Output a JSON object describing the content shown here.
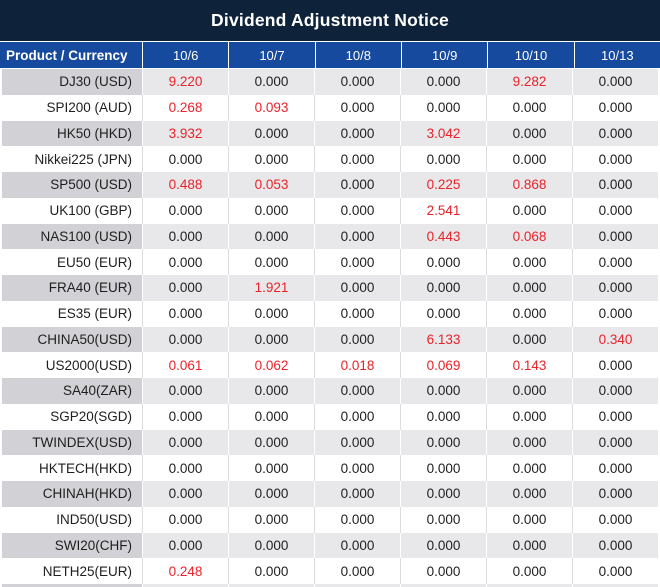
{
  "title": "Dividend Adjustment Notice",
  "colors": {
    "title_bg": "#0e2239",
    "header_bg": "#164a9e",
    "red": "#e8232a"
  },
  "table": {
    "product_header": "Product / Currency",
    "date_columns": [
      "10/6",
      "10/7",
      "10/8",
      "10/9",
      "10/10",
      "10/13"
    ],
    "rows": [
      {
        "product": "DJ30 (USD)",
        "values": [
          "9.220",
          "0.000",
          "0.000",
          "0.000",
          "9.282",
          "0.000"
        ]
      },
      {
        "product": "SPI200 (AUD)",
        "values": [
          "0.268",
          "0.093",
          "0.000",
          "0.000",
          "0.000",
          "0.000"
        ]
      },
      {
        "product": "HK50 (HKD)",
        "values": [
          "3.932",
          "0.000",
          "0.000",
          "3.042",
          "0.000",
          "0.000"
        ]
      },
      {
        "product": "Nikkei225 (JPN)",
        "values": [
          "0.000",
          "0.000",
          "0.000",
          "0.000",
          "0.000",
          "0.000"
        ]
      },
      {
        "product": "SP500 (USD)",
        "values": [
          "0.488",
          "0.053",
          "0.000",
          "0.225",
          "0.868",
          "0.000"
        ]
      },
      {
        "product": "UK100 (GBP)",
        "values": [
          "0.000",
          "0.000",
          "0.000",
          "2.541",
          "0.000",
          "0.000"
        ]
      },
      {
        "product": "NAS100 (USD)",
        "values": [
          "0.000",
          "0.000",
          "0.000",
          "0.443",
          "0.068",
          "0.000"
        ]
      },
      {
        "product": "EU50 (EUR)",
        "values": [
          "0.000",
          "0.000",
          "0.000",
          "0.000",
          "0.000",
          "0.000"
        ]
      },
      {
        "product": "FRA40 (EUR)",
        "values": [
          "0.000",
          "1.921",
          "0.000",
          "0.000",
          "0.000",
          "0.000"
        ]
      },
      {
        "product": "ES35 (EUR)",
        "values": [
          "0.000",
          "0.000",
          "0.000",
          "0.000",
          "0.000",
          "0.000"
        ]
      },
      {
        "product": "CHINA50(USD)",
        "values": [
          "0.000",
          "0.000",
          "0.000",
          "6.133",
          "0.000",
          "0.340"
        ]
      },
      {
        "product": "US2000(USD)",
        "values": [
          "0.061",
          "0.062",
          "0.018",
          "0.069",
          "0.143",
          "0.000"
        ]
      },
      {
        "product": "SA40(ZAR)",
        "values": [
          "0.000",
          "0.000",
          "0.000",
          "0.000",
          "0.000",
          "0.000"
        ]
      },
      {
        "product": "SGP20(SGD)",
        "values": [
          "0.000",
          "0.000",
          "0.000",
          "0.000",
          "0.000",
          "0.000"
        ]
      },
      {
        "product": "TWINDEX(USD)",
        "values": [
          "0.000",
          "0.000",
          "0.000",
          "0.000",
          "0.000",
          "0.000"
        ]
      },
      {
        "product": "HKTECH(HKD)",
        "values": [
          "0.000",
          "0.000",
          "0.000",
          "0.000",
          "0.000",
          "0.000"
        ]
      },
      {
        "product": "CHINAH(HKD)",
        "values": [
          "0.000",
          "0.000",
          "0.000",
          "0.000",
          "0.000",
          "0.000"
        ]
      },
      {
        "product": "IND50(USD)",
        "values": [
          "0.000",
          "0.000",
          "0.000",
          "0.000",
          "0.000",
          "0.000"
        ]
      },
      {
        "product": "SWI20(CHF)",
        "values": [
          "0.000",
          "0.000",
          "0.000",
          "0.000",
          "0.000",
          "0.000"
        ]
      },
      {
        "product": "NETH25(EUR)",
        "values": [
          "0.248",
          "0.000",
          "0.000",
          "0.000",
          "0.000",
          "0.000"
        ]
      }
    ]
  }
}
